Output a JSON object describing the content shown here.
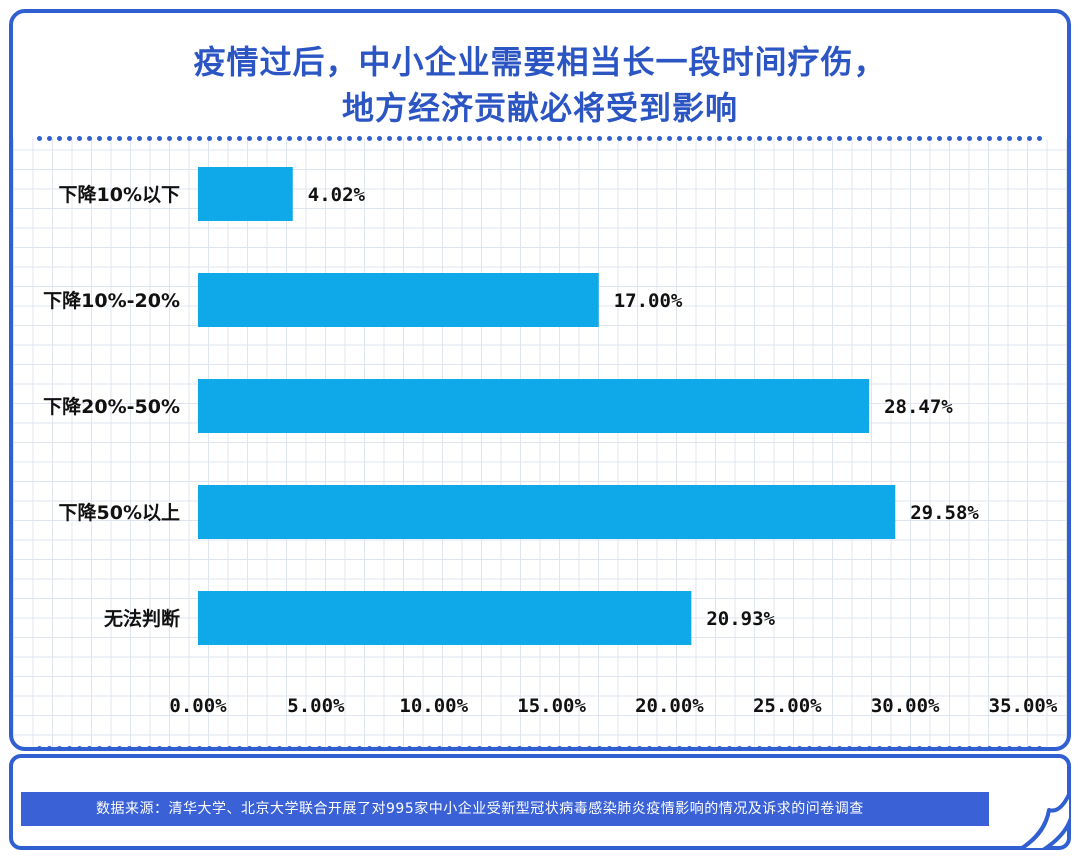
{
  "title_line1": "疫情过后，中小企业需要相当长一段时间疗伤，",
  "title_line2": "地方经济贡献必将受到影响",
  "source_text": "数据来源：清华大学、北京大学联合开展了对995家中小企业受新型冠状病毒感染肺炎疫情影响的情况及诉求的问卷调查",
  "colors": {
    "accent": "#2f5fd1",
    "bar": "#0fa8e8",
    "title": "#2c55c4"
  },
  "chart_data": {
    "type": "bar",
    "orientation": "horizontal",
    "categories": [
      "下降10%以下",
      "下降10%-20%",
      "下降20%-50%",
      "下降50%以上",
      "无法判断"
    ],
    "values": [
      4.02,
      17.0,
      28.47,
      29.58,
      20.93
    ],
    "value_labels": [
      "4.02%",
      "17.00%",
      "28.47%",
      "29.58%",
      "20.93%"
    ],
    "x_ticks": [
      "0.00%",
      "5.00%",
      "10.00%",
      "15.00%",
      "20.00%",
      "25.00%",
      "30.00%",
      "35.00%"
    ],
    "xlim": [
      0,
      35
    ],
    "grid": true
  }
}
